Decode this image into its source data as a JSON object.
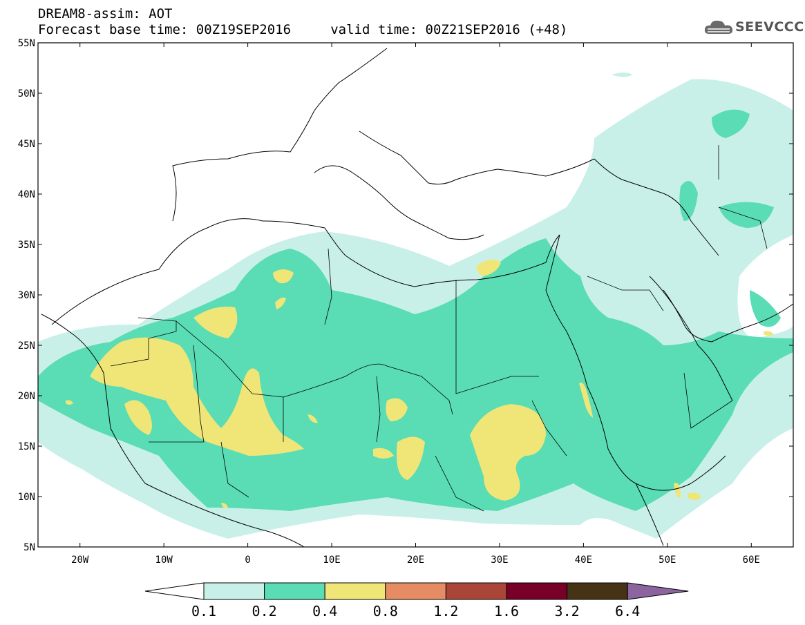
{
  "title_line1": "DREAM8-assim: AOT",
  "title_line2": "Forecast base time: 00Z19SEP2016     valid time: 00Z21SEP2016 (+48)",
  "logo_text": "SEEVCCC",
  "logo_icon": "cloud-icon",
  "map": {
    "lon_range": [
      -25,
      65
    ],
    "lat_range": [
      5,
      55
    ],
    "lat_ticks": [
      "55N",
      "50N",
      "45N",
      "40N",
      "35N",
      "30N",
      "25N",
      "20N",
      "15N",
      "10N",
      "5N"
    ],
    "lon_ticks": [
      "20W",
      "10W",
      "0",
      "10E",
      "20E",
      "30E",
      "40E",
      "50E",
      "60E"
    ]
  },
  "legend": {
    "labels": [
      "0.1",
      "0.2",
      "0.4",
      "0.8",
      "1.2",
      "1.6",
      "3.2",
      "6.4"
    ],
    "colors": [
      "#c8f0e8",
      "#5adcb4",
      "#f0e678",
      "#e68c64",
      "#aa4637",
      "#780028",
      "#463214",
      "#8c64a0"
    ]
  }
}
